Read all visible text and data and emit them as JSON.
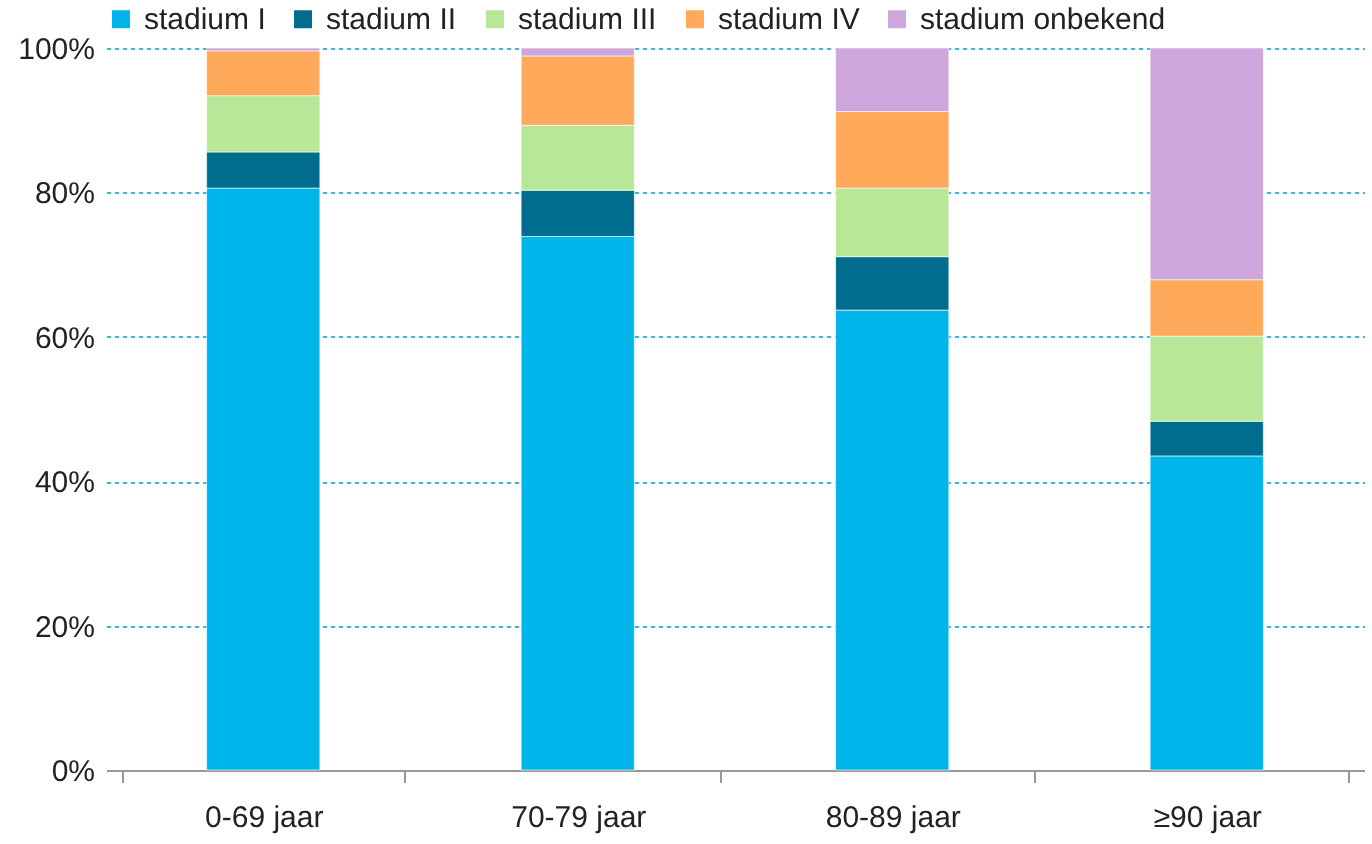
{
  "chart_data": {
    "type": "bar",
    "stacked": true,
    "categories": [
      "0-69 jaar",
      "70-79 jaar",
      "80-89 jaar",
      "≥90 jaar"
    ],
    "series": [
      {
        "name": "stadium I",
        "color": "#00b5e9",
        "values": [
          80.6,
          73.9,
          63.7,
          43.5
        ]
      },
      {
        "name": "stadium II",
        "color": "#006d8f",
        "values": [
          5.0,
          6.4,
          7.4,
          4.8
        ]
      },
      {
        "name": "stadium III",
        "color": "#b8e897",
        "values": [
          7.8,
          9.0,
          9.5,
          11.8
        ]
      },
      {
        "name": "stadium IV",
        "color": "#ffa95a",
        "values": [
          6.2,
          9.6,
          10.6,
          7.8
        ]
      },
      {
        "name": "stadium onbekend",
        "color": "#cda6dc",
        "values": [
          0.4,
          1.1,
          8.8,
          32.1
        ]
      }
    ],
    "ylim": [
      0,
      100
    ],
    "yticks": [
      {
        "value": 0,
        "label": "0%"
      },
      {
        "value": 20,
        "label": "20%"
      },
      {
        "value": 40,
        "label": "40%"
      },
      {
        "value": 60,
        "label": "60%"
      },
      {
        "value": 80,
        "label": "80%"
      },
      {
        "value": 100,
        "label": "100%"
      }
    ],
    "grid": "y",
    "legend": "top"
  }
}
